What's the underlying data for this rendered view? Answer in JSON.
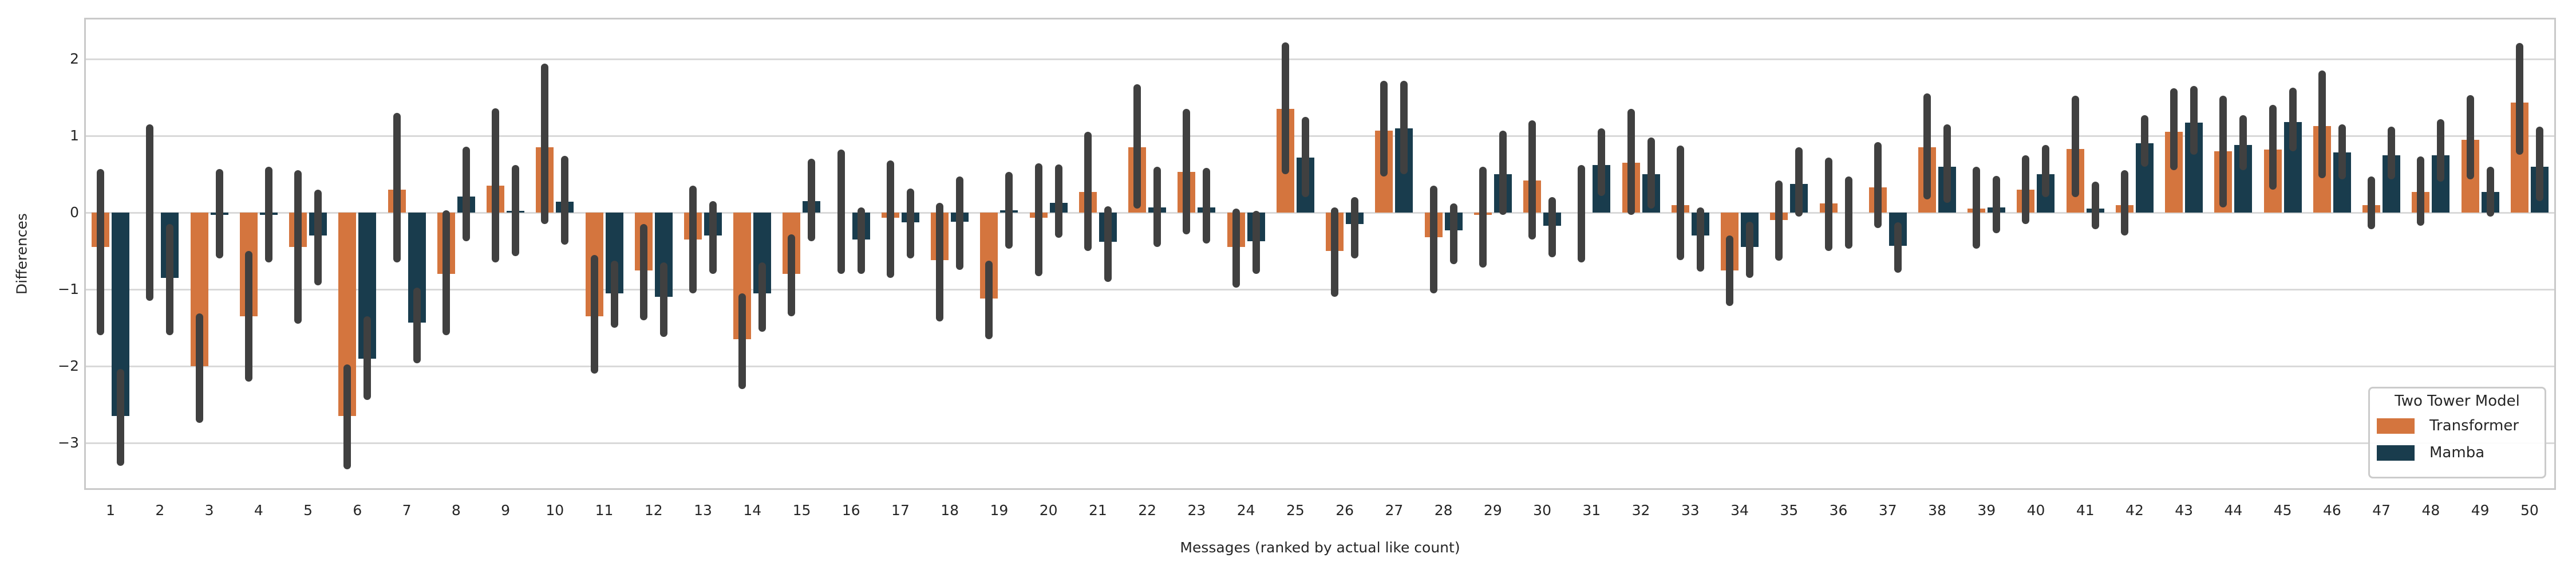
{
  "axes": {
    "ylabel": "Differences",
    "xlabel": "Messages (ranked by actual like count)"
  },
  "legend": {
    "title": "Two Tower Model",
    "entries": [
      "Transformer",
      "Mamba"
    ]
  },
  "colors": {
    "transformer": "#d4753e",
    "mamba": "#193c4d",
    "error_bar": "#404040",
    "gridline": "#d9d9d9",
    "spine": "#c9c9c9",
    "tick_text": "#262626"
  },
  "chart_data": {
    "type": "bar",
    "title": "",
    "xlabel": "Messages (ranked by actual like count)",
    "ylabel": "Differences",
    "ylim": [
      -3.59,
      2.51
    ],
    "yticks": [
      2,
      1,
      0,
      -1,
      -2,
      -3
    ],
    "ytick_labels": [
      "2",
      "1",
      "0",
      "−1",
      "−2",
      "−3"
    ],
    "grid": true,
    "legend_title": "Two Tower Model",
    "legend_position": "lower right",
    "error_bars": "vertical interval per bar",
    "categories": [
      1,
      2,
      3,
      4,
      5,
      6,
      7,
      8,
      9,
      10,
      11,
      12,
      13,
      14,
      15,
      16,
      17,
      18,
      19,
      20,
      21,
      22,
      23,
      24,
      25,
      26,
      27,
      28,
      29,
      30,
      31,
      32,
      33,
      34,
      35,
      36,
      37,
      38,
      39,
      40,
      41,
      42,
      43,
      44,
      45,
      46,
      47,
      48,
      49,
      50
    ],
    "series": [
      {
        "name": "Transformer",
        "color": "#d4753e",
        "values": [
          -0.45,
          0.0,
          -2.0,
          -1.35,
          -0.45,
          -2.65,
          0.3,
          -0.8,
          0.35,
          0.85,
          -1.35,
          -0.75,
          -0.35,
          -1.65,
          -0.8,
          0.0,
          -0.07,
          -0.62,
          -1.12,
          -0.07,
          0.27,
          0.85,
          0.53,
          -0.45,
          1.35,
          -0.5,
          1.07,
          -0.32,
          -0.03,
          0.42,
          0.0,
          0.65,
          0.1,
          -0.75,
          -0.1,
          0.12,
          0.33,
          0.85,
          0.05,
          0.3,
          0.83,
          0.1,
          1.05,
          0.8,
          0.82,
          1.13,
          0.1,
          0.27,
          0.95,
          1.43
        ],
        "ci": [
          [
            -1.6,
            0.57
          ],
          [
            -1.15,
            1.15
          ],
          [
            -2.74,
            -1.31
          ],
          [
            -2.2,
            -0.5
          ],
          [
            -1.45,
            0.55
          ],
          [
            -3.34,
            -1.98
          ],
          [
            -0.65,
            1.3
          ],
          [
            -1.6,
            0.03
          ],
          [
            -0.65,
            1.36
          ],
          [
            -0.15,
            1.94
          ],
          [
            -2.1,
            -0.55
          ],
          [
            -1.4,
            -0.15
          ],
          [
            -1.05,
            0.35
          ],
          [
            -2.3,
            -1.05
          ],
          [
            -1.35,
            -0.28
          ],
          [
            -0.8,
            0.82
          ],
          [
            -0.85,
            0.68
          ],
          [
            -1.42,
            0.13
          ],
          [
            -1.65,
            -0.63
          ],
          [
            -0.83,
            0.64
          ],
          [
            -0.5,
            1.05
          ],
          [
            0.05,
            1.67
          ],
          [
            -0.28,
            1.35
          ],
          [
            -0.98,
            0.05
          ],
          [
            0.5,
            2.22
          ],
          [
            -1.1,
            0.07
          ],
          [
            0.47,
            1.72
          ],
          [
            -1.05,
            0.35
          ],
          [
            -0.72,
            0.6
          ],
          [
            -0.35,
            1.2
          ],
          [
            -0.65,
            0.62
          ],
          [
            -0.03,
            1.35
          ],
          [
            -0.62,
            0.87
          ],
          [
            -1.22,
            -0.3
          ],
          [
            -0.63,
            0.42
          ],
          [
            -0.5,
            0.72
          ],
          [
            -0.2,
            0.92
          ],
          [
            0.17,
            1.55
          ],
          [
            -0.47,
            0.6
          ],
          [
            -0.15,
            0.75
          ],
          [
            0.2,
            1.52
          ],
          [
            -0.3,
            0.55
          ],
          [
            0.55,
            1.62
          ],
          [
            0.07,
            1.52
          ],
          [
            0.3,
            1.4
          ],
          [
            0.45,
            1.85
          ],
          [
            -0.22,
            0.47
          ],
          [
            -0.17,
            0.73
          ],
          [
            0.43,
            1.53
          ],
          [
            0.75,
            2.21
          ]
        ]
      },
      {
        "name": "Mamba",
        "color": "#193c4d",
        "values": [
          -2.65,
          -0.85,
          -0.03,
          -0.03,
          -0.3,
          -1.9,
          -1.43,
          0.21,
          0.02,
          0.14,
          -1.05,
          -1.1,
          -0.3,
          -1.05,
          0.15,
          -0.35,
          -0.13,
          -0.12,
          0.03,
          0.13,
          -0.38,
          0.07,
          0.07,
          -0.37,
          0.72,
          -0.15,
          1.1,
          -0.23,
          0.5,
          -0.17,
          0.62,
          0.5,
          -0.3,
          -0.45,
          0.37,
          0.0,
          -0.43,
          0.6,
          0.07,
          0.5,
          0.05,
          0.9,
          1.17,
          0.88,
          1.18,
          0.78,
          0.75,
          0.75,
          0.27,
          0.6
        ],
        "ci": [
          [
            -3.3,
            -2.04
          ],
          [
            -1.6,
            -0.15
          ],
          [
            -0.6,
            0.57
          ],
          [
            -0.65,
            0.6
          ],
          [
            -0.95,
            0.3
          ],
          [
            -2.44,
            -1.35
          ],
          [
            -1.96,
            -0.98
          ],
          [
            -0.37,
            0.86
          ],
          [
            -0.57,
            0.62
          ],
          [
            -0.42,
            0.74
          ],
          [
            -1.5,
            -0.63
          ],
          [
            -1.62,
            -0.65
          ],
          [
            -0.8,
            0.15
          ],
          [
            -1.55,
            -0.65
          ],
          [
            -0.37,
            0.7
          ],
          [
            -0.8,
            0.07
          ],
          [
            -0.6,
            0.31
          ],
          [
            -0.75,
            0.47
          ],
          [
            -0.47,
            0.53
          ],
          [
            -0.33,
            0.63
          ],
          [
            -0.9,
            0.08
          ],
          [
            -0.45,
            0.6
          ],
          [
            -0.4,
            0.58
          ],
          [
            -0.8,
            0.02
          ],
          [
            0.2,
            1.25
          ],
          [
            -0.6,
            0.2
          ],
          [
            0.5,
            1.72
          ],
          [
            -0.67,
            0.12
          ],
          [
            -0.03,
            1.07
          ],
          [
            -0.58,
            0.2
          ],
          [
            0.22,
            1.1
          ],
          [
            0.05,
            0.98
          ],
          [
            -0.77,
            0.07
          ],
          [
            -0.85,
            -0.12
          ],
          [
            -0.05,
            0.85
          ],
          [
            -0.47,
            0.47
          ],
          [
            -0.78,
            -0.13
          ],
          [
            0.13,
            1.15
          ],
          [
            -0.27,
            0.48
          ],
          [
            0.2,
            0.88
          ],
          [
            -0.22,
            0.4
          ],
          [
            0.6,
            1.27
          ],
          [
            0.75,
            1.65
          ],
          [
            0.55,
            1.27
          ],
          [
            0.8,
            1.63
          ],
          [
            0.43,
            1.15
          ],
          [
            0.43,
            1.12
          ],
          [
            0.4,
            1.22
          ],
          [
            -0.05,
            0.6
          ],
          [
            0.15,
            1.12
          ]
        ]
      }
    ]
  }
}
